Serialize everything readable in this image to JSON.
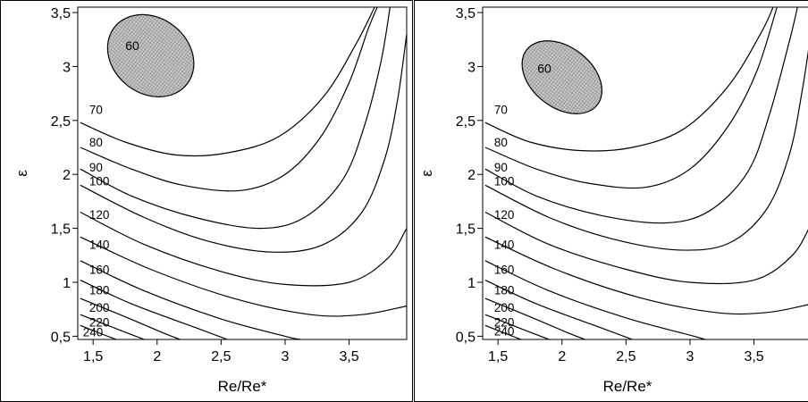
{
  "chart_data": [
    {
      "type": "contour",
      "xlabel": "Re/Re*",
      "ylabel": "ε",
      "xlim": [
        1.38,
        3.95
      ],
      "ylim": [
        0.47,
        3.55
      ],
      "x_ticks": [
        {
          "value": 1.5,
          "label": "1,5"
        },
        {
          "value": 2,
          "label": "2"
        },
        {
          "value": 2.5,
          "label": "2,5"
        },
        {
          "value": 3,
          "label": "3"
        },
        {
          "value": 3.5,
          "label": "3,5"
        }
      ],
      "y_ticks": [
        {
          "value": 0.5,
          "label": "0,5"
        },
        {
          "value": 1,
          "label": "1"
        },
        {
          "value": 1.5,
          "label": "1,5"
        },
        {
          "value": 2,
          "label": "2"
        },
        {
          "value": 2.5,
          "label": "2,5"
        },
        {
          "value": 3,
          "label": "3"
        },
        {
          "value": 3.5,
          "label": "3,5"
        }
      ],
      "minimum_region": {
        "label": "60",
        "center": [
          1.95,
          3.1
        ],
        "rx": 0.36,
        "ry": 0.35,
        "fill": "#c8c8c8",
        "hatched": true
      },
      "contour_labels": [
        {
          "label": "70",
          "x": 1.47,
          "y": 2.6
        },
        {
          "label": "80",
          "x": 1.47,
          "y": 2.3
        },
        {
          "label": "90",
          "x": 1.47,
          "y": 2.07
        },
        {
          "label": "100",
          "x": 1.47,
          "y": 1.94
        },
        {
          "label": "120",
          "x": 1.47,
          "y": 1.63
        },
        {
          "label": "140",
          "x": 1.47,
          "y": 1.35
        },
        {
          "label": "160",
          "x": 1.47,
          "y": 1.12
        },
        {
          "label": "180",
          "x": 1.47,
          "y": 0.93
        },
        {
          "label": "200",
          "x": 1.47,
          "y": 0.77
        },
        {
          "label": "220",
          "x": 1.47,
          "y": 0.63
        },
        {
          "label": "240",
          "x": 1.42,
          "y": 0.54
        }
      ],
      "contours": [
        {
          "level": 70,
          "points": [
            [
              1.4,
              2.48
            ],
            [
              1.75,
              2.3
            ],
            [
              2.15,
              2.18
            ],
            [
              2.55,
              2.2
            ],
            [
              2.95,
              2.35
            ],
            [
              3.3,
              2.72
            ],
            [
              3.55,
              3.2
            ],
            [
              3.7,
              3.55
            ]
          ]
        },
        {
          "level": 80,
          "points": [
            [
              1.4,
              2.25
            ],
            [
              1.8,
              2.05
            ],
            [
              2.2,
              1.9
            ],
            [
              2.65,
              1.85
            ],
            [
              3.0,
              2.0
            ],
            [
              3.28,
              2.35
            ],
            [
              3.5,
              2.85
            ],
            [
              3.65,
              3.35
            ],
            [
              3.72,
              3.55
            ]
          ]
        },
        {
          "level": 90,
          "points": [
            [
              1.4,
              2.05
            ],
            [
              1.8,
              1.8
            ],
            [
              2.3,
              1.6
            ],
            [
              2.8,
              1.5
            ],
            [
              3.15,
              1.6
            ],
            [
              3.45,
              1.95
            ],
            [
              3.62,
              2.45
            ],
            [
              3.75,
              3.05
            ],
            [
              3.82,
              3.55
            ]
          ]
        },
        {
          "level": 100,
          "points": [
            [
              1.4,
              1.9
            ],
            [
              1.9,
              1.6
            ],
            [
              2.4,
              1.38
            ],
            [
              2.9,
              1.28
            ],
            [
              3.3,
              1.35
            ],
            [
              3.6,
              1.65
            ],
            [
              3.78,
              2.15
            ],
            [
              3.88,
              2.7
            ],
            [
              3.95,
              3.3
            ]
          ]
        },
        {
          "level": 120,
          "points": [
            [
              1.4,
              1.65
            ],
            [
              1.9,
              1.35
            ],
            [
              2.5,
              1.1
            ],
            [
              3.0,
              0.98
            ],
            [
              3.5,
              1.0
            ],
            [
              3.8,
              1.22
            ],
            [
              3.95,
              1.5
            ]
          ]
        },
        {
          "level": 140,
          "points": [
            [
              1.4,
              1.42
            ],
            [
              1.95,
              1.12
            ],
            [
              2.6,
              0.85
            ],
            [
              3.2,
              0.7
            ],
            [
              3.6,
              0.7
            ],
            [
              3.95,
              0.78
            ]
          ]
        },
        {
          "level": 160,
          "points": [
            [
              1.4,
              1.2
            ],
            [
              1.9,
              0.92
            ],
            [
              2.5,
              0.66
            ],
            [
              3.0,
              0.5
            ],
            [
              3.12,
              0.47
            ]
          ]
        },
        {
          "level": 180,
          "points": [
            [
              1.4,
              1.02
            ],
            [
              1.8,
              0.8
            ],
            [
              2.3,
              0.58
            ],
            [
              2.55,
              0.47
            ]
          ]
        },
        {
          "level": 200,
          "points": [
            [
              1.4,
              0.85
            ],
            [
              1.75,
              0.68
            ],
            [
              2.05,
              0.53
            ],
            [
              2.18,
              0.47
            ]
          ]
        },
        {
          "level": 220,
          "points": [
            [
              1.4,
              0.7
            ],
            [
              1.68,
              0.57
            ],
            [
              1.9,
              0.47
            ]
          ]
        },
        {
          "level": 240,
          "points": [
            [
              1.4,
              0.6
            ],
            [
              1.57,
              0.52
            ],
            [
              1.68,
              0.47
            ]
          ]
        }
      ]
    },
    {
      "type": "contour",
      "xlabel": "Re/Re*",
      "ylabel": "ε",
      "xlim": [
        1.38,
        3.95
      ],
      "ylim": [
        0.47,
        3.55
      ],
      "x_ticks": [
        {
          "value": 1.5,
          "label": "1,5"
        },
        {
          "value": 2,
          "label": "2"
        },
        {
          "value": 2.5,
          "label": "2,5"
        },
        {
          "value": 3,
          "label": "3"
        },
        {
          "value": 3.5,
          "label": "3,5"
        }
      ],
      "y_ticks": [
        {
          "value": 0.5,
          "label": "0,5"
        },
        {
          "value": 1,
          "label": "1"
        },
        {
          "value": 1.5,
          "label": "1,5"
        },
        {
          "value": 2,
          "label": "2"
        },
        {
          "value": 2.5,
          "label": "2,5"
        },
        {
          "value": 3,
          "label": "3"
        },
        {
          "value": 3.5,
          "label": "3,5"
        }
      ],
      "minimum_region": {
        "label": "60",
        "center": [
          2.0,
          2.9
        ],
        "rx": 0.35,
        "ry": 0.28,
        "fill": "#c8c8c8",
        "hatched": true
      },
      "contour_labels": [
        {
          "label": "70",
          "x": 1.47,
          "y": 2.6
        },
        {
          "label": "80",
          "x": 1.47,
          "y": 2.3
        },
        {
          "label": "90",
          "x": 1.47,
          "y": 2.07
        },
        {
          "label": "100",
          "x": 1.47,
          "y": 1.94
        },
        {
          "label": "120",
          "x": 1.47,
          "y": 1.63
        },
        {
          "label": "140",
          "x": 1.47,
          "y": 1.35
        },
        {
          "label": "160",
          "x": 1.47,
          "y": 1.12
        },
        {
          "label": "180",
          "x": 1.47,
          "y": 0.93
        },
        {
          "label": "200",
          "x": 1.47,
          "y": 0.77
        },
        {
          "label": "220",
          "x": 1.47,
          "y": 0.63
        },
        {
          "label": "240",
          "x": 1.47,
          "y": 0.55
        }
      ],
      "contours": [
        {
          "level": 70,
          "points": [
            [
              1.4,
              2.48
            ],
            [
              1.75,
              2.3
            ],
            [
              2.15,
              2.22
            ],
            [
              2.55,
              2.25
            ],
            [
              2.95,
              2.42
            ],
            [
              3.3,
              2.82
            ],
            [
              3.55,
              3.3
            ],
            [
              3.65,
              3.55
            ]
          ]
        },
        {
          "level": 80,
          "points": [
            [
              1.4,
              2.25
            ],
            [
              1.8,
              2.05
            ],
            [
              2.2,
              1.92
            ],
            [
              2.65,
              1.88
            ],
            [
              3.0,
              2.05
            ],
            [
              3.3,
              2.45
            ],
            [
              3.52,
              2.95
            ],
            [
              3.68,
              3.55
            ]
          ]
        },
        {
          "level": 90,
          "points": [
            [
              1.4,
              2.05
            ],
            [
              1.8,
              1.8
            ],
            [
              2.3,
              1.62
            ],
            [
              2.8,
              1.55
            ],
            [
              3.15,
              1.66
            ],
            [
              3.45,
              2.02
            ],
            [
              3.62,
              2.55
            ],
            [
              3.78,
              3.25
            ],
            [
              3.84,
              3.55
            ]
          ]
        },
        {
          "level": 100,
          "points": [
            [
              1.4,
              1.9
            ],
            [
              1.9,
              1.6
            ],
            [
              2.4,
              1.4
            ],
            [
              2.9,
              1.3
            ],
            [
              3.3,
              1.36
            ],
            [
              3.6,
              1.68
            ],
            [
              3.78,
              2.2
            ],
            [
              3.88,
              2.8
            ],
            [
              3.95,
              3.35
            ]
          ]
        },
        {
          "level": 120,
          "points": [
            [
              1.4,
              1.65
            ],
            [
              1.9,
              1.35
            ],
            [
              2.5,
              1.12
            ],
            [
              3.0,
              1.0
            ],
            [
              3.5,
              1.02
            ],
            [
              3.8,
              1.25
            ],
            [
              3.95,
              1.55
            ]
          ]
        },
        {
          "level": 140,
          "points": [
            [
              1.4,
              1.42
            ],
            [
              1.95,
              1.12
            ],
            [
              2.6,
              0.86
            ],
            [
              3.2,
              0.72
            ],
            [
              3.6,
              0.72
            ],
            [
              3.95,
              0.8
            ]
          ]
        },
        {
          "level": 160,
          "points": [
            [
              1.4,
              1.2
            ],
            [
              1.9,
              0.92
            ],
            [
              2.5,
              0.67
            ],
            [
              3.0,
              0.51
            ],
            [
              3.12,
              0.47
            ]
          ]
        },
        {
          "level": 180,
          "points": [
            [
              1.4,
              1.02
            ],
            [
              1.8,
              0.8
            ],
            [
              2.3,
              0.58
            ],
            [
              2.55,
              0.47
            ]
          ]
        },
        {
          "level": 200,
          "points": [
            [
              1.4,
              0.85
            ],
            [
              1.75,
              0.68
            ],
            [
              2.05,
              0.53
            ],
            [
              2.18,
              0.47
            ]
          ]
        },
        {
          "level": 220,
          "points": [
            [
              1.4,
              0.7
            ],
            [
              1.68,
              0.57
            ],
            [
              1.9,
              0.47
            ]
          ]
        },
        {
          "level": 240,
          "points": [
            [
              1.4,
              0.6
            ],
            [
              1.57,
              0.52
            ],
            [
              1.68,
              0.47
            ]
          ]
        }
      ]
    }
  ]
}
